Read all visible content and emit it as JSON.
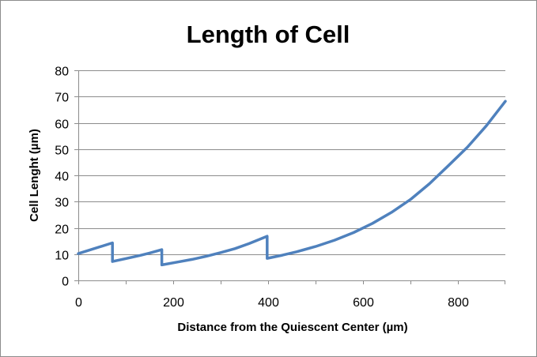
{
  "chart_data": {
    "type": "line",
    "title": "Length of Cell",
    "xlabel": "Distance from the Quiescent Center (µm)",
    "ylabel": "Cell Lenght (µm)",
    "xlim": [
      0,
      900
    ],
    "ylim": [
      0,
      80
    ],
    "xticks": [
      0,
      200,
      400,
      600,
      800
    ],
    "yticks": [
      0,
      10,
      20,
      30,
      40,
      50,
      60,
      70,
      80
    ],
    "grid": true,
    "legend": "none",
    "series": [
      {
        "name": "Cell Length",
        "color": "#4f81bd",
        "x": [
          0,
          72,
          72,
          100,
          130,
          150,
          176,
          176,
          210,
          240,
          270,
          300,
          330,
          360,
          398,
          398,
          430,
          460,
          500,
          540,
          580,
          620,
          660,
          700,
          740,
          780,
          820,
          860,
          900
        ],
        "y": [
          10.2,
          14.3,
          7.2,
          8.3,
          9.5,
          10.4,
          11.7,
          5.9,
          7.0,
          8.0,
          9.2,
          10.6,
          12.1,
          14.0,
          16.8,
          8.4,
          9.6,
          10.9,
          12.9,
          15.3,
          18.2,
          21.7,
          25.9,
          30.8,
          36.8,
          43.7,
          50.7,
          58.9,
          68.2
        ]
      }
    ]
  }
}
